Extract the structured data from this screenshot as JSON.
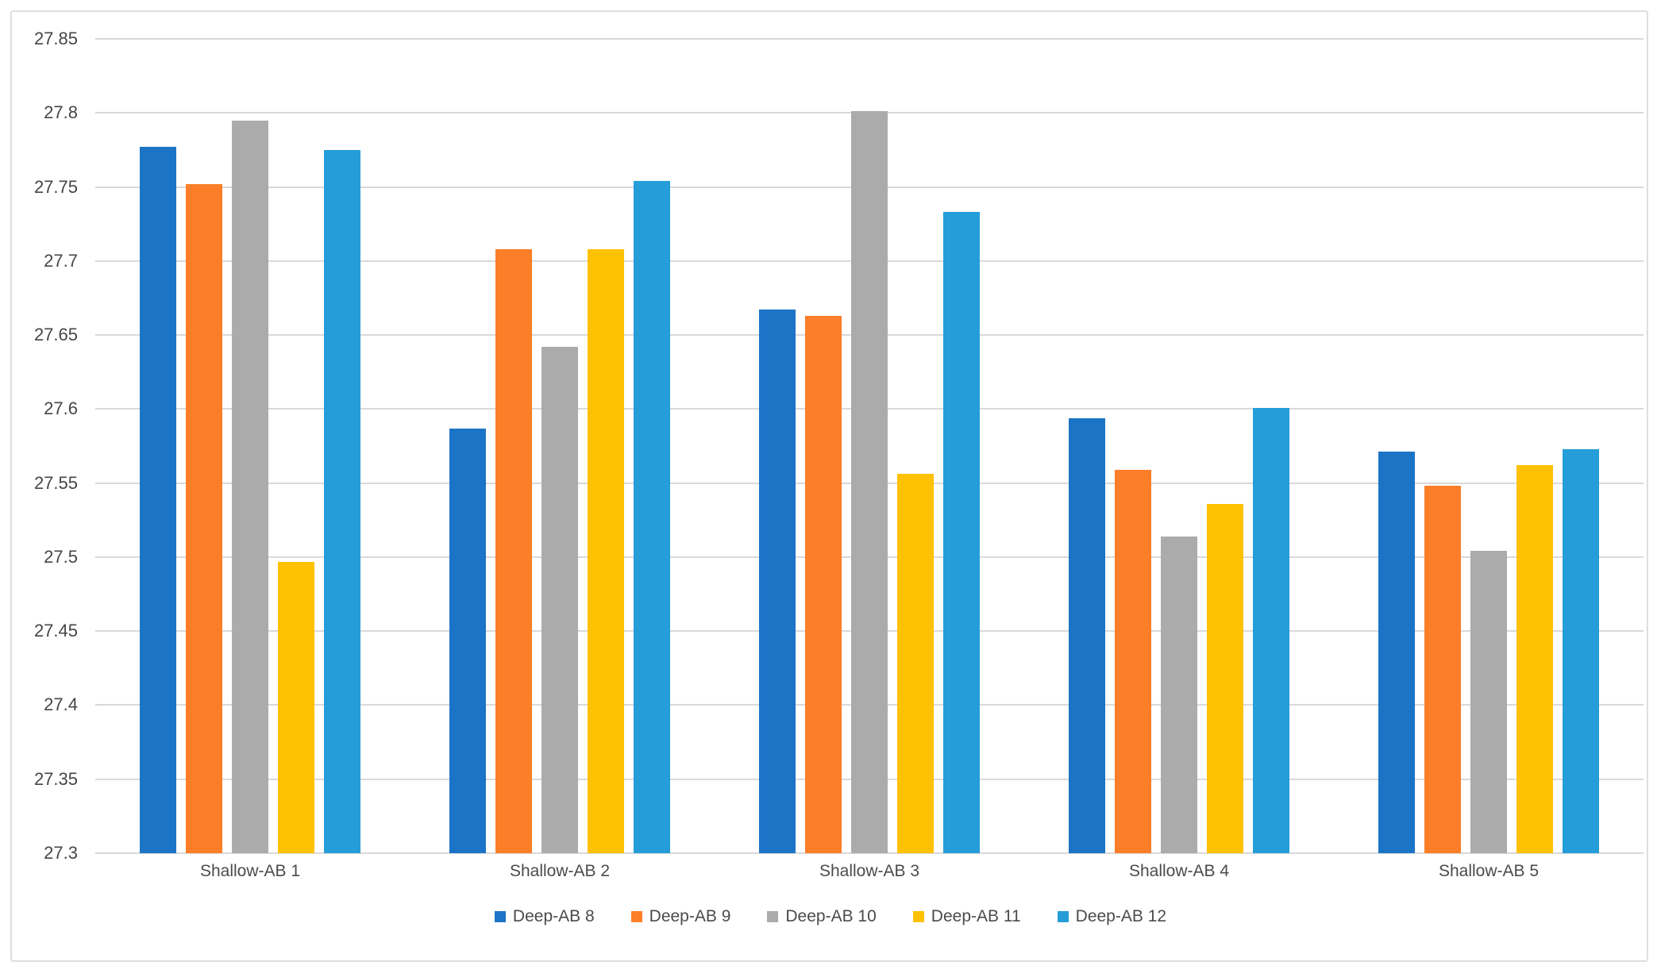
{
  "chart_data": {
    "type": "bar",
    "title": "",
    "xlabel": "",
    "ylabel": "",
    "grid": true,
    "legend_position": "bottom",
    "ylim": [
      27.3,
      27.85
    ],
    "ytick_labels": [
      "27.85",
      "27.8",
      "27.75",
      "27.7",
      "27.65",
      "27.6",
      "27.55",
      "27.5",
      "27.45",
      "27.4",
      "27.35",
      "27.3"
    ],
    "ytick_values": [
      27.85,
      27.8,
      27.75,
      27.7,
      27.65,
      27.6,
      27.55,
      27.5,
      27.45,
      27.4,
      27.35,
      27.3
    ],
    "categories": [
      "Shallow-AB 1",
      "Shallow-AB 2",
      "Shallow-AB 3",
      "Shallow-AB 4",
      "Shallow-AB 5"
    ],
    "series": [
      {
        "name": "Deep-AB 8",
        "color": "#1c74c6",
        "values": [
          27.777,
          27.587,
          27.667,
          27.594,
          27.571
        ]
      },
      {
        "name": "Deep-AB 9",
        "color": "#fc7e28",
        "values": [
          27.752,
          27.708,
          27.663,
          27.559,
          27.548
        ]
      },
      {
        "name": "Deep-AB 10",
        "color": "#ababab",
        "values": [
          27.795,
          27.642,
          27.801,
          27.514,
          27.504
        ]
      },
      {
        "name": "Deep-AB 11",
        "color": "#ffc103",
        "values": [
          27.497,
          27.708,
          27.556,
          27.536,
          27.562
        ]
      },
      {
        "name": "Deep-AB 12",
        "color": "#249dd8",
        "values": [
          27.775,
          27.754,
          27.733,
          27.601,
          27.573
        ]
      }
    ],
    "colors": {
      "gridline": "#d9d9d9",
      "axis_text": "#464646",
      "frame_border": "#dedede",
      "background": "#ffffff"
    }
  }
}
